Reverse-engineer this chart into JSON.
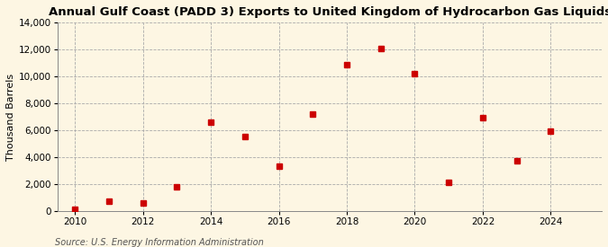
{
  "title": "Annual Gulf Coast (PADD 3) Exports to United Kingdom of Hydrocarbon Gas Liquids",
  "ylabel": "Thousand Barrels",
  "source_text": "Source: U.S. Energy Information Administration",
  "years": [
    2010,
    2011,
    2012,
    2013,
    2014,
    2015,
    2016,
    2017,
    2018,
    2019,
    2020,
    2021,
    2022,
    2023,
    2024
  ],
  "values": [
    100,
    700,
    550,
    1800,
    6600,
    5500,
    3300,
    7200,
    10900,
    12100,
    10200,
    2100,
    6900,
    3700,
    5900
  ],
  "marker_color": "#cc0000",
  "marker": "s",
  "marker_size": 4,
  "ylim": [
    0,
    14000
  ],
  "yticks": [
    0,
    2000,
    4000,
    6000,
    8000,
    10000,
    12000,
    14000
  ],
  "xlim": [
    2009.5,
    2025.5
  ],
  "xticks": [
    2010,
    2012,
    2014,
    2016,
    2018,
    2020,
    2022,
    2024
  ],
  "background_color": "#fdf6e3",
  "grid_color": "#aaaaaa",
  "title_fontsize": 9.5,
  "label_fontsize": 8,
  "tick_fontsize": 7.5,
  "source_fontsize": 7
}
